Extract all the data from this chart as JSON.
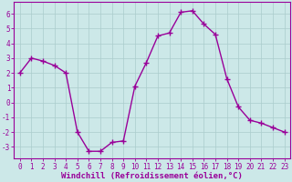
{
  "x": [
    0,
    1,
    2,
    3,
    4,
    5,
    6,
    7,
    8,
    9,
    10,
    11,
    12,
    13,
    14,
    15,
    16,
    17,
    18,
    19,
    20,
    21,
    22,
    23
  ],
  "y": [
    2.0,
    3.0,
    2.8,
    2.5,
    2.0,
    -2.0,
    -3.3,
    -3.3,
    -2.7,
    -2.6,
    1.1,
    2.7,
    4.5,
    4.7,
    6.1,
    6.2,
    5.3,
    4.6,
    1.6,
    -0.3,
    -1.2,
    -1.4,
    -1.7,
    -2.0
  ],
  "line_color": "#990099",
  "marker": "+",
  "marker_size": 4,
  "xlabel": "Windchill (Refroidissement éolien,°C)",
  "xlabel_fontsize": 6.5,
  "ytick_labels": [
    "-3",
    "-2",
    "-1",
    "0",
    "1",
    "2",
    "3",
    "4",
    "5",
    "6"
  ],
  "ytick_vals": [
    -3,
    -2,
    -1,
    0,
    1,
    2,
    3,
    4,
    5,
    6
  ],
  "xlim": [
    -0.5,
    23.5
  ],
  "ylim": [
    -3.8,
    6.8
  ],
  "bg_color": "#cce8e8",
  "grid_color": "#aacccc",
  "tick_color": "#990099",
  "label_color": "#990099",
  "spine_color": "#990099",
  "tick_fontsize": 5.5,
  "linewidth": 1.0
}
